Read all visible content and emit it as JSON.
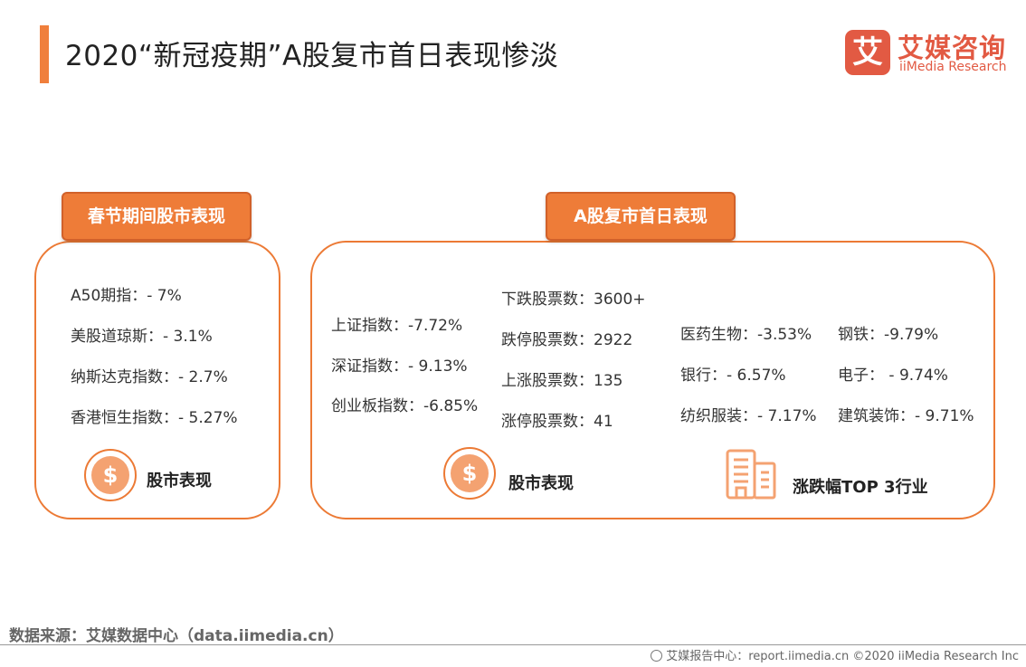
{
  "title": "2020“新冠疫期”A股复市首日表现惨淡",
  "logo": {
    "mark": "艾",
    "cn": "艾媒咨询",
    "en": "iiMedia Research"
  },
  "left_panel": {
    "tab": "春节期间股市表现",
    "items": [
      "A50期指：- 7%",
      "美股道琼斯：- 3.1%",
      "纳斯达克指数：- 2.7%",
      "香港恒生指数：- 5.27%"
    ],
    "caption": "股市表现",
    "coin_symbol": "$"
  },
  "right_panel": {
    "tab": "A股复市首日表现",
    "indices": [
      "上证指数：-7.72%",
      "深证指数：- 9.13%",
      "创业板指数：-6.85%"
    ],
    "counts": [
      "下跌股票数：3600+",
      "跌停股票数：2922",
      "上涨股票数：135",
      "涨停股票数：41"
    ],
    "industries_col1": [
      "医药生物：-3.53%",
      "银行：- 6.57%",
      "纺织服装：- 7.17%"
    ],
    "industries_col2": [
      "钢铁：-9.79%",
      "电子：  -  9.74%",
      "建筑装饰：- 9.71%"
    ],
    "caption_market": "股市表现",
    "caption_industry": "涨跌幅TOP 3行业",
    "coin_symbol": "$"
  },
  "source": "数据来源：艾媒数据中心（data.iimedia.cn）",
  "footer": "艾媒报告中心：report.iimedia.cn  ©2020  iiMedia Research  Inc",
  "colors": {
    "accent": "#ec7a35",
    "brand": "#e25a43"
  }
}
